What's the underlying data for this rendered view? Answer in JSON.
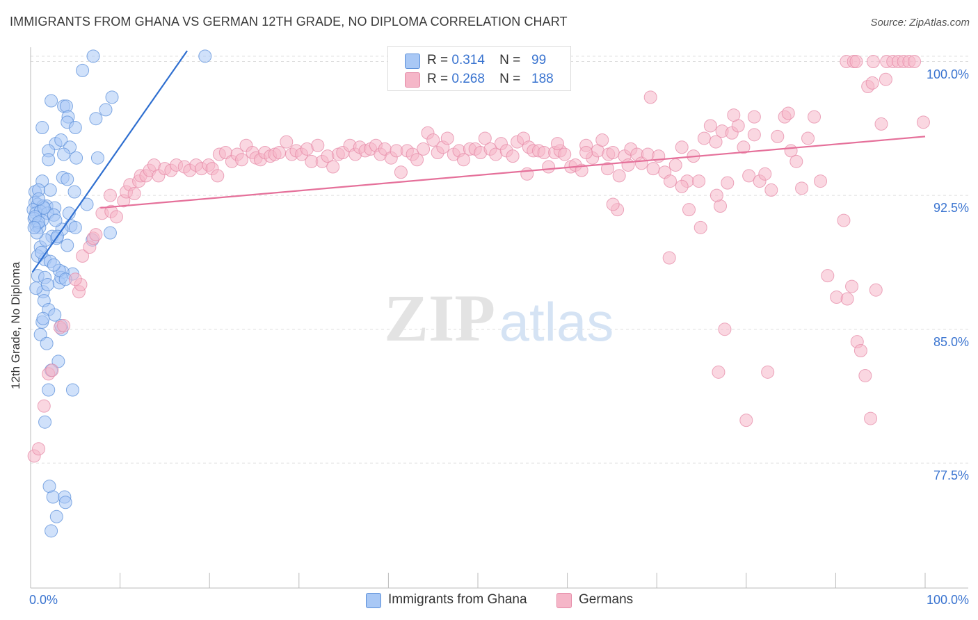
{
  "title": "IMMIGRANTS FROM GHANA VS GERMAN 12TH GRADE, NO DIPLOMA CORRELATION CHART",
  "source": "Source: ZipAtlas.com",
  "watermark": {
    "zip": "ZIP",
    "atlas": "atlas"
  },
  "legend_stats": [
    {
      "r_label": "R =",
      "r_value": "0.314",
      "n_label": "N =",
      "n_value": "99",
      "color": "#a9c8f5"
    },
    {
      "r_label": "R =",
      "r_value": "0.268",
      "n_label": "N =",
      "n_value": "188",
      "color": "#f5b6c8"
    }
  ],
  "colors": {
    "blue_fill": "#a9c8f5",
    "blue_stroke": "#5b8fd9",
    "blue_line": "#2f6fd0",
    "pink_fill": "#f5b6c8",
    "pink_stroke": "#e58aa7",
    "pink_line": "#e5709a",
    "tick_text": "#3a74d0",
    "grid": "#dddddd"
  },
  "chart_data": {
    "type": "scatter",
    "title": "IMMIGRANTS FROM GHANA VS GERMAN 12TH GRADE, NO DIPLOMA CORRELATION CHART",
    "xlabel": "",
    "ylabel": "12th Grade, No Diploma",
    "xlim": [
      0,
      100
    ],
    "ylim": [
      70.5,
      100.8
    ],
    "x_tick_labels": [
      "0.0%",
      "100.0%"
    ],
    "y_ticks": [
      77.5,
      85.0,
      92.5,
      100.0
    ],
    "y_tick_labels": [
      "77.5%",
      "85.0%",
      "92.5%",
      "100.0%"
    ],
    "grid": true,
    "legend": "bottom-center",
    "series": [
      {
        "name": "Immigrants from Ghana",
        "r": 0.314,
        "n": 99,
        "trend": {
          "x0": 0.2,
          "y0": 88.2,
          "x1": 17.5,
          "y1": 100.6
        },
        "points": [
          [
            7.0,
            100.3
          ],
          [
            19.5,
            100.3
          ],
          [
            5.8,
            99.5
          ],
          [
            2.3,
            97.8
          ],
          [
            3.7,
            97.5
          ],
          [
            4.0,
            97.5
          ],
          [
            9.1,
            98.0
          ],
          [
            8.4,
            97.3
          ],
          [
            4.2,
            96.9
          ],
          [
            4.1,
            96.6
          ],
          [
            1.3,
            96.3
          ],
          [
            5.0,
            96.3
          ],
          [
            7.3,
            96.8
          ],
          [
            2.8,
            95.4
          ],
          [
            3.4,
            95.6
          ],
          [
            4.4,
            95.2
          ],
          [
            2.0,
            95.0
          ],
          [
            3.7,
            94.8
          ],
          [
            5.1,
            94.6
          ],
          [
            2.0,
            94.5
          ],
          [
            7.5,
            94.6
          ],
          [
            3.6,
            93.5
          ],
          [
            4.1,
            93.4
          ],
          [
            1.3,
            93.3
          ],
          [
            0.5,
            92.7
          ],
          [
            0.9,
            92.8
          ],
          [
            2.2,
            92.8
          ],
          [
            4.9,
            92.7
          ],
          [
            0.5,
            92.1
          ],
          [
            0.8,
            92.0
          ],
          [
            1.4,
            91.9
          ],
          [
            1.8,
            91.9
          ],
          [
            0.3,
            91.7
          ],
          [
            2.7,
            91.8
          ],
          [
            0.6,
            91.5
          ],
          [
            1.1,
            91.6
          ],
          [
            1.9,
            91.5
          ],
          [
            2.6,
            91.4
          ],
          [
            0.4,
            91.2
          ],
          [
            1.3,
            91.1
          ],
          [
            0.8,
            90.9
          ],
          [
            0.6,
            90.8
          ],
          [
            1.0,
            90.7
          ],
          [
            4.5,
            90.8
          ],
          [
            5.0,
            90.7
          ],
          [
            3.5,
            90.6
          ],
          [
            8.9,
            90.4
          ],
          [
            2.4,
            90.2
          ],
          [
            2.9,
            90.1
          ],
          [
            4.1,
            89.7
          ],
          [
            1.1,
            89.6
          ],
          [
            0.8,
            89.1
          ],
          [
            1.6,
            88.9
          ],
          [
            2.2,
            88.8
          ],
          [
            4.7,
            88.1
          ],
          [
            3.6,
            88.2
          ],
          [
            0.8,
            88.0
          ],
          [
            1.6,
            87.9
          ],
          [
            3.2,
            87.6
          ],
          [
            3.4,
            87.9
          ],
          [
            1.4,
            87.1
          ],
          [
            1.5,
            86.6
          ],
          [
            0.6,
            87.3
          ],
          [
            2.0,
            86.1
          ],
          [
            1.3,
            85.4
          ],
          [
            1.4,
            85.6
          ],
          [
            3.5,
            85.0
          ],
          [
            1.1,
            84.7
          ],
          [
            1.8,
            84.2
          ],
          [
            3.1,
            83.2
          ],
          [
            2.3,
            82.7
          ],
          [
            2.0,
            81.6
          ],
          [
            4.7,
            81.6
          ],
          [
            1.6,
            79.8
          ],
          [
            6.9,
            90.0
          ],
          [
            6.3,
            92.0
          ],
          [
            2.1,
            76.2
          ],
          [
            2.5,
            75.6
          ],
          [
            3.8,
            75.6
          ],
          [
            3.9,
            75.3
          ],
          [
            2.9,
            74.5
          ],
          [
            2.3,
            73.7
          ],
          [
            0.5,
            91.3
          ],
          [
            1.5,
            91.8
          ],
          [
            2.8,
            91.1
          ],
          [
            0.9,
            91.0
          ],
          [
            1.7,
            90.0
          ],
          [
            3.0,
            90.2
          ],
          [
            3.2,
            88.3
          ],
          [
            3.9,
            87.8
          ],
          [
            1.2,
            89.3
          ],
          [
            0.7,
            90.4
          ],
          [
            0.4,
            90.7
          ],
          [
            2.6,
            88.6
          ],
          [
            1.9,
            87.5
          ],
          [
            3.4,
            85.2
          ],
          [
            2.7,
            85.8
          ],
          [
            0.9,
            92.3
          ],
          [
            4.3,
            91.5
          ]
        ]
      },
      {
        "name": "Germans",
        "r": 0.268,
        "n": 188,
        "trend": {
          "x0": 7.8,
          "y0": 91.8,
          "x1": 100.0,
          "y1": 95.8
        },
        "points": [
          [
            0.4,
            77.9
          ],
          [
            0.9,
            78.3
          ],
          [
            1.5,
            80.7
          ],
          [
            2.0,
            82.5
          ],
          [
            2.4,
            82.7
          ],
          [
            3.3,
            85.1
          ],
          [
            3.7,
            85.2
          ],
          [
            5.4,
            87.1
          ],
          [
            5.6,
            87.5
          ],
          [
            5.0,
            87.8
          ],
          [
            5.8,
            89.1
          ],
          [
            6.6,
            89.6
          ],
          [
            7.0,
            90.1
          ],
          [
            7.3,
            90.3
          ],
          [
            8.0,
            91.5
          ],
          [
            9.0,
            91.6
          ],
          [
            9.6,
            91.3
          ],
          [
            10.4,
            92.2
          ],
          [
            8.9,
            92.5
          ],
          [
            10.7,
            92.7
          ],
          [
            11.1,
            93.1
          ],
          [
            11.6,
            92.6
          ],
          [
            12.1,
            93.3
          ],
          [
            12.3,
            93.6
          ],
          [
            12.9,
            93.6
          ],
          [
            13.3,
            93.9
          ],
          [
            13.8,
            94.2
          ],
          [
            14.3,
            93.6
          ],
          [
            15.0,
            94.0
          ],
          [
            15.7,
            93.9
          ],
          [
            16.3,
            94.2
          ],
          [
            17.2,
            94.1
          ],
          [
            17.8,
            93.9
          ],
          [
            18.5,
            94.2
          ],
          [
            19.1,
            94.0
          ],
          [
            19.9,
            94.2
          ],
          [
            20.3,
            94.0
          ],
          [
            20.9,
            93.6
          ],
          [
            21.1,
            94.8
          ],
          [
            21.8,
            94.9
          ],
          [
            22.5,
            94.4
          ],
          [
            23.1,
            94.8
          ],
          [
            23.6,
            94.5
          ],
          [
            24.1,
            95.3
          ],
          [
            24.8,
            94.9
          ],
          [
            25.2,
            94.6
          ],
          [
            25.7,
            94.5
          ],
          [
            26.2,
            94.9
          ],
          [
            26.8,
            94.7
          ],
          [
            27.3,
            94.8
          ],
          [
            27.8,
            94.9
          ],
          [
            28.6,
            95.5
          ],
          [
            29.2,
            94.8
          ],
          [
            29.7,
            95.0
          ],
          [
            30.3,
            94.8
          ],
          [
            30.9,
            95.1
          ],
          [
            31.4,
            94.4
          ],
          [
            32.1,
            95.3
          ],
          [
            32.6,
            94.4
          ],
          [
            33.2,
            94.7
          ],
          [
            33.8,
            94.1
          ],
          [
            34.4,
            94.8
          ],
          [
            34.9,
            94.9
          ],
          [
            35.7,
            95.3
          ],
          [
            36.3,
            94.8
          ],
          [
            36.8,
            95.2
          ],
          [
            37.4,
            95.0
          ],
          [
            38.0,
            95.1
          ],
          [
            38.6,
            95.3
          ],
          [
            39.1,
            94.8
          ],
          [
            39.6,
            95.1
          ],
          [
            40.3,
            94.6
          ],
          [
            40.9,
            95.0
          ],
          [
            41.4,
            93.8
          ],
          [
            42.1,
            95.0
          ],
          [
            42.7,
            94.8
          ],
          [
            43.2,
            94.5
          ],
          [
            43.9,
            95.1
          ],
          [
            44.4,
            96.0
          ],
          [
            45.0,
            95.6
          ],
          [
            45.5,
            94.9
          ],
          [
            46.1,
            95.2
          ],
          [
            46.6,
            95.7
          ],
          [
            47.3,
            94.8
          ],
          [
            47.9,
            95.0
          ],
          [
            48.4,
            94.5
          ],
          [
            49.1,
            95.1
          ],
          [
            49.7,
            95.1
          ],
          [
            50.3,
            94.9
          ],
          [
            50.8,
            95.7
          ],
          [
            51.4,
            95.1
          ],
          [
            52.0,
            94.8
          ],
          [
            52.6,
            95.4
          ],
          [
            53.2,
            95.0
          ],
          [
            53.9,
            94.7
          ],
          [
            54.4,
            95.5
          ],
          [
            55.1,
            95.7
          ],
          [
            55.7,
            95.2
          ],
          [
            56.2,
            95.0
          ],
          [
            56.8,
            95.0
          ],
          [
            57.4,
            94.9
          ],
          [
            57.9,
            94.1
          ],
          [
            58.6,
            94.9
          ],
          [
            59.2,
            95.0
          ],
          [
            59.7,
            94.8
          ],
          [
            60.4,
            94.1
          ],
          [
            60.9,
            94.2
          ],
          [
            61.6,
            93.9
          ],
          [
            62.1,
            95.3
          ],
          [
            62.8,
            94.6
          ],
          [
            63.4,
            95.0
          ],
          [
            63.9,
            95.6
          ],
          [
            64.6,
            94.8
          ],
          [
            65.1,
            94.9
          ],
          [
            65.8,
            93.6
          ],
          [
            66.4,
            94.7
          ],
          [
            67.1,
            95.1
          ],
          [
            67.8,
            94.8
          ],
          [
            68.3,
            94.3
          ],
          [
            69.0,
            94.8
          ],
          [
            69.6,
            94.0
          ],
          [
            70.2,
            94.7
          ],
          [
            70.9,
            93.8
          ],
          [
            71.5,
            93.3
          ],
          [
            72.1,
            94.2
          ],
          [
            72.8,
            95.2
          ],
          [
            73.4,
            93.3
          ],
          [
            74.1,
            94.7
          ],
          [
            74.7,
            93.3
          ],
          [
            75.3,
            95.7
          ],
          [
            76.0,
            96.4
          ],
          [
            76.6,
            95.5
          ],
          [
            77.3,
            96.1
          ],
          [
            77.9,
            93.2
          ],
          [
            78.4,
            96.0
          ],
          [
            79.1,
            96.4
          ],
          [
            79.7,
            95.2
          ],
          [
            80.3,
            93.6
          ],
          [
            80.9,
            95.9
          ],
          [
            81.5,
            93.3
          ],
          [
            82.1,
            93.7
          ],
          [
            82.8,
            92.8
          ],
          [
            83.5,
            95.8
          ],
          [
            84.3,
            96.9
          ],
          [
            85.0,
            95.0
          ],
          [
            85.6,
            94.4
          ],
          [
            86.2,
            92.9
          ],
          [
            86.9,
            95.7
          ],
          [
            87.6,
            96.9
          ],
          [
            88.3,
            93.3
          ],
          [
            89.1,
            88.0
          ],
          [
            90.1,
            86.8
          ],
          [
            90.9,
            91.1
          ],
          [
            91.3,
            86.7
          ],
          [
            91.8,
            87.4
          ],
          [
            92.4,
            84.3
          ],
          [
            92.8,
            83.8
          ],
          [
            93.3,
            82.4
          ],
          [
            93.9,
            80.0
          ],
          [
            94.5,
            87.2
          ],
          [
            95.1,
            96.5
          ],
          [
            95.7,
            100.0
          ],
          [
            96.4,
            100.0
          ],
          [
            97.0,
            100.0
          ],
          [
            97.6,
            100.0
          ],
          [
            98.2,
            100.0
          ],
          [
            98.8,
            100.0
          ],
          [
            91.2,
            100.0
          ],
          [
            92.0,
            100.0
          ],
          [
            92.3,
            100.0
          ],
          [
            93.6,
            98.6
          ],
          [
            94.2,
            100.0
          ],
          [
            80.0,
            79.9
          ],
          [
            76.9,
            82.6
          ],
          [
            82.4,
            82.6
          ],
          [
            77.6,
            85.0
          ],
          [
            71.4,
            89.0
          ],
          [
            73.6,
            91.7
          ],
          [
            65.6,
            91.7
          ],
          [
            65.1,
            92.0
          ],
          [
            72.8,
            93.0
          ],
          [
            77.1,
            91.9
          ],
          [
            76.7,
            92.5
          ],
          [
            69.3,
            98.0
          ],
          [
            74.9,
            90.7
          ],
          [
            80.9,
            96.9
          ],
          [
            78.6,
            97.0
          ],
          [
            94.1,
            98.8
          ],
          [
            99.8,
            96.6
          ],
          [
            95.6,
            99.0
          ],
          [
            84.7,
            97.1
          ],
          [
            62.1,
            94.9
          ],
          [
            64.5,
            94.0
          ],
          [
            66.8,
            94.2
          ],
          [
            58.9,
            95.4
          ],
          [
            55.5,
            93.7
          ]
        ]
      }
    ]
  }
}
